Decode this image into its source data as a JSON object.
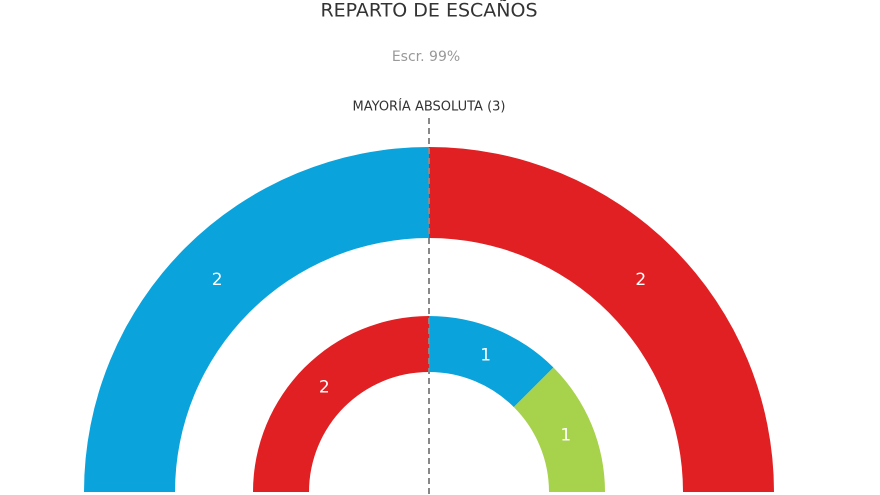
{
  "chart_data": {
    "type": "semi-donut",
    "title": "REPARTO DE ESCAÑOS",
    "subtitle": "Escr. 99%",
    "annotation": "MAYORÍA ABSOLUTA (3)",
    "rings": [
      {
        "values": [
          2,
          2
        ],
        "colors": [
          "#0aa3dc",
          "#e12023"
        ]
      },
      {
        "values": [
          2,
          1,
          1
        ],
        "colors": [
          "#e12023",
          "#0aa3dc",
          "#a7d24c"
        ]
      }
    ]
  }
}
